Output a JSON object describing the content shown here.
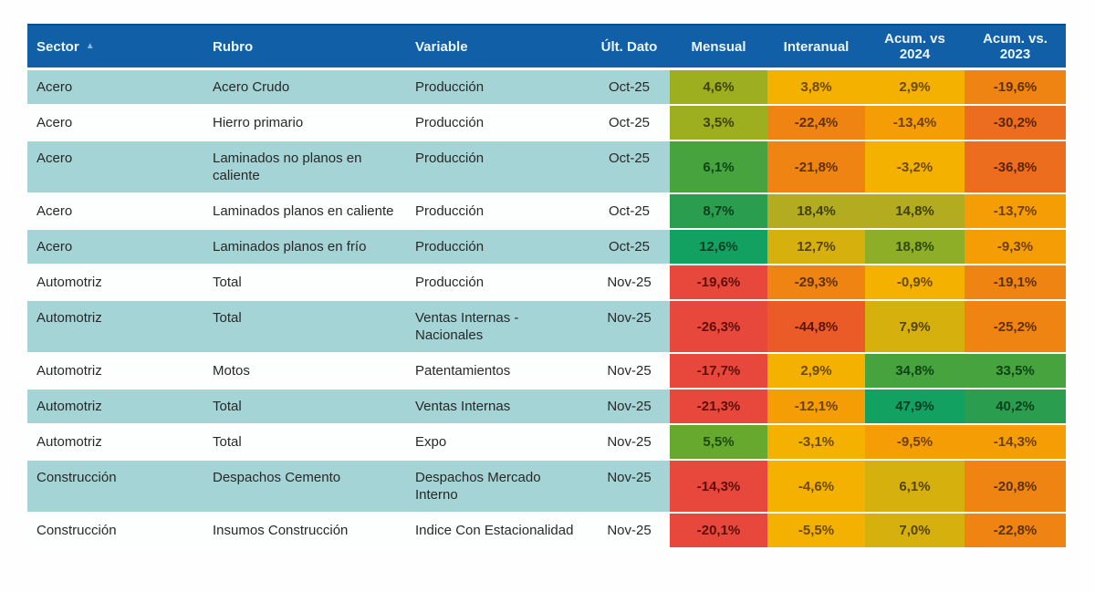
{
  "chart_data": {
    "type": "table",
    "title": "",
    "columns": [
      {
        "key": "sector",
        "label": "Sector",
        "align": "left",
        "sorted": "asc"
      },
      {
        "key": "rubro",
        "label": "Rubro",
        "align": "left"
      },
      {
        "key": "variable",
        "label": "Variable",
        "align": "left"
      },
      {
        "key": "ult_dato",
        "label": "Últ. Dato",
        "align": "center"
      },
      {
        "key": "mensual",
        "label": "Mensual",
        "align": "center"
      },
      {
        "key": "interanual",
        "label": "Interanual",
        "align": "center"
      },
      {
        "key": "acum_2024",
        "label": "Acum. vs 2024",
        "align": "center"
      },
      {
        "key": "acum_2023",
        "label": "Acum. vs. 2023",
        "align": "center"
      }
    ],
    "rows": [
      {
        "sector": "Acero",
        "rubro": "Acero Crudo",
        "variable": "Producción",
        "ult_dato": "Oct-25",
        "values": [
          {
            "text": "4,6%",
            "tone": "olive"
          },
          {
            "text": "3,8%",
            "tone": "amber"
          },
          {
            "text": "2,9%",
            "tone": "amber"
          },
          {
            "text": "-19,6%",
            "tone": "orange"
          }
        ]
      },
      {
        "sector": "Acero",
        "rubro": "Hierro primario",
        "variable": "Producción",
        "ult_dato": "Oct-25",
        "values": [
          {
            "text": "3,5%",
            "tone": "olive"
          },
          {
            "text": "-22,4%",
            "tone": "orange"
          },
          {
            "text": "-13,4%",
            "tone": "orangel"
          },
          {
            "text": "-30,2%",
            "tone": "orange2"
          }
        ]
      },
      {
        "sector": "Acero",
        "rubro": "Laminados no planos en caliente",
        "variable": "Producción",
        "ult_dato": "Oct-25",
        "values": [
          {
            "text": "6,1%",
            "tone": "green2"
          },
          {
            "text": "-21,8%",
            "tone": "orange"
          },
          {
            "text": "-3,2%",
            "tone": "amber"
          },
          {
            "text": "-36,8%",
            "tone": "orange2"
          }
        ]
      },
      {
        "sector": "Acero",
        "rubro": "Laminados planos en caliente",
        "variable": "Producción",
        "ult_dato": "Oct-25",
        "values": [
          {
            "text": "8,7%",
            "tone": "green"
          },
          {
            "text": "18,4%",
            "tone": "yolive"
          },
          {
            "text": "14,8%",
            "tone": "yolive"
          },
          {
            "text": "-13,7%",
            "tone": "orangel"
          }
        ]
      },
      {
        "sector": "Acero",
        "rubro": "Laminados planos en frío",
        "variable": "Producción",
        "ult_dato": "Oct-25",
        "values": [
          {
            "text": "12,6%",
            "tone": "teal"
          },
          {
            "text": "12,7%",
            "tone": "amberolive"
          },
          {
            "text": "18,8%",
            "tone": "ygreen"
          },
          {
            "text": "-9,3%",
            "tone": "orangel"
          }
        ]
      },
      {
        "sector": "Automotriz",
        "rubro": "Total",
        "variable": "Producción",
        "ult_dato": "Nov-25",
        "values": [
          {
            "text": "-19,6%",
            "tone": "red"
          },
          {
            "text": "-29,3%",
            "tone": "orange"
          },
          {
            "text": "-0,9%",
            "tone": "amber"
          },
          {
            "text": "-19,1%",
            "tone": "orange"
          }
        ]
      },
      {
        "sector": "Automotriz",
        "rubro": "Total",
        "variable": "Ventas Internas - Nacionales",
        "ult_dato": "Nov-25",
        "values": [
          {
            "text": "-26,3%",
            "tone": "red"
          },
          {
            "text": "-44,8%",
            "tone": "redorange"
          },
          {
            "text": "7,9%",
            "tone": "amberolive"
          },
          {
            "text": "-25,2%",
            "tone": "orange"
          }
        ]
      },
      {
        "sector": "Automotriz",
        "rubro": "Motos",
        "variable": "Patentamientos",
        "ult_dato": "Nov-25",
        "values": [
          {
            "text": "-17,7%",
            "tone": "red"
          },
          {
            "text": "2,9%",
            "tone": "amber"
          },
          {
            "text": "34,8%",
            "tone": "green2"
          },
          {
            "text": "33,5%",
            "tone": "green2"
          }
        ]
      },
      {
        "sector": "Automotriz",
        "rubro": "Total",
        "variable": "Ventas Internas",
        "ult_dato": "Nov-25",
        "values": [
          {
            "text": "-21,3%",
            "tone": "red"
          },
          {
            "text": "-12,1%",
            "tone": "orangel"
          },
          {
            "text": "47,9%",
            "tone": "teal"
          },
          {
            "text": "40,2%",
            "tone": "green"
          }
        ]
      },
      {
        "sector": "Automotriz",
        "rubro": "Total",
        "variable": "Expo",
        "ult_dato": "Nov-25",
        "values": [
          {
            "text": "5,5%",
            "tone": "ygreen2"
          },
          {
            "text": "-3,1%",
            "tone": "amber"
          },
          {
            "text": "-9,5%",
            "tone": "orangel"
          },
          {
            "text": "-14,3%",
            "tone": "orangel"
          }
        ]
      },
      {
        "sector": "Construcción",
        "rubro": "Despachos Cemento",
        "variable": "Despachos Mercado Interno",
        "ult_dato": "Nov-25",
        "values": [
          {
            "text": "-14,3%",
            "tone": "red"
          },
          {
            "text": "-4,6%",
            "tone": "amber"
          },
          {
            "text": "6,1%",
            "tone": "amberolive"
          },
          {
            "text": "-20,8%",
            "tone": "orange"
          }
        ]
      },
      {
        "sector": "Construcción",
        "rubro": "Insumos Construcción",
        "variable": "Indice Con Estacionalidad",
        "ult_dato": "Nov-25",
        "values": [
          {
            "text": "-20,1%",
            "tone": "red"
          },
          {
            "text": "-5,5%",
            "tone": "amber"
          },
          {
            "text": "7,0%",
            "tone": "amberolive"
          },
          {
            "text": "-22,8%",
            "tone": "orange"
          }
        ]
      }
    ]
  },
  "header": {
    "sort_icon": "▲"
  },
  "palette": {
    "olive": {
      "bg": "#9daf1e",
      "fg": "#3b4403"
    },
    "yolive": {
      "bg": "#b3ac20",
      "fg": "#403f04"
    },
    "amberolive": {
      "bg": "#d6b10e",
      "fg": "#554300"
    },
    "ygreen": {
      "bg": "#8fae28",
      "fg": "#2e4a06"
    },
    "ygreen2": {
      "bg": "#67a92f",
      "fg": "#1c4a0b"
    },
    "green2": {
      "bg": "#46a33e",
      "fg": "#0d4414"
    },
    "green": {
      "bg": "#2a9e4e",
      "fg": "#07401e"
    },
    "teal": {
      "bg": "#12a160",
      "fg": "#003f23"
    },
    "amber": {
      "bg": "#f4b100",
      "fg": "#6b4a00"
    },
    "orangel": {
      "bg": "#f59d05",
      "fg": "#6e4000"
    },
    "orange": {
      "bg": "#ef8412",
      "fg": "#5f3000"
    },
    "orange2": {
      "bg": "#ec6d1d",
      "fg": "#5b2400"
    },
    "redorange": {
      "bg": "#eb5b28",
      "fg": "#591503"
    },
    "red": {
      "bg": "#e8473c",
      "fg": "#5d0e07"
    }
  },
  "colors": {
    "header_bg": "#1160a7",
    "header_fg": "#eef5fa",
    "header_top_edge": "#0d4e85",
    "row_teal": "#a5d4d6",
    "row_white": "#fdfefe",
    "label_fg": "#282828",
    "sort_arrow": "#85b8de"
  }
}
